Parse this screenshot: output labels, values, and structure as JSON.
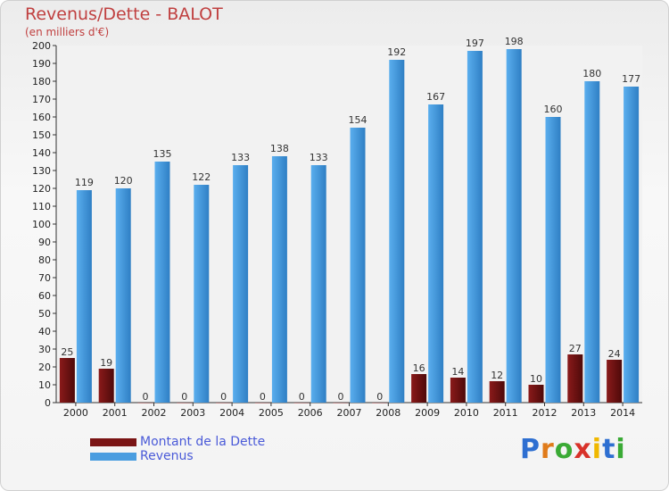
{
  "header": {
    "title": "Revenus/Dette - BALOT",
    "subtitle": "(en milliers d'€)"
  },
  "legend": {
    "debt_label": "Montant de la Dette",
    "revenue_label": "Revenus"
  },
  "logo": {
    "letters": [
      "P",
      "r",
      "o",
      "x",
      "i",
      "t",
      "i"
    ],
    "colors": [
      "#2e6fd1",
      "#e07b1a",
      "#3aaa35",
      "#d8322a",
      "#f0b800",
      "#2e6fd1",
      "#3aaa35"
    ]
  },
  "colors": {
    "debt": "#7a1414",
    "revenue": "#4a9de0",
    "title": "#c04040",
    "legend_text": "#4a5ad8"
  },
  "chart_data": {
    "type": "bar",
    "title": "Revenus/Dette - BALOT",
    "subtitle": "(en milliers d'€)",
    "categories": [
      "2000",
      "2001",
      "2002",
      "2003",
      "2004",
      "2005",
      "2006",
      "2007",
      "2008",
      "2009",
      "2010",
      "2011",
      "2012",
      "2013",
      "2014"
    ],
    "series": [
      {
        "name": "Montant de la Dette",
        "values": [
          25,
          19,
          0,
          0,
          0,
          0,
          0,
          0,
          0,
          16,
          14,
          12,
          10,
          27,
          24
        ]
      },
      {
        "name": "Revenus",
        "values": [
          119,
          120,
          135,
          122,
          133,
          138,
          133,
          154,
          192,
          167,
          197,
          198,
          160,
          180,
          177
        ]
      }
    ],
    "ylim": [
      0,
      200
    ],
    "ytick_step": 10,
    "grid": false,
    "legend_position": "bottom-left"
  }
}
